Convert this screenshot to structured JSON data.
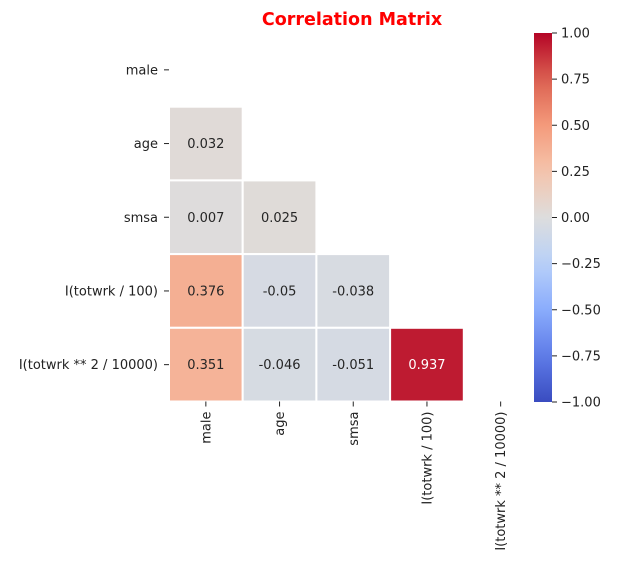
{
  "chart_data": {
    "type": "heatmap",
    "title": "Correlation Matrix",
    "title_color": "#ff0000",
    "variables": [
      "male",
      "age",
      "smsa",
      "I(totwrk / 100)",
      "I(totwrk ** 2 / 10000)"
    ],
    "mask": "upper-triangle-and-diagonal",
    "cells": [
      {
        "row": 1,
        "col": 0,
        "value": 0.032,
        "label": "0.032"
      },
      {
        "row": 2,
        "col": 0,
        "value": 0.007,
        "label": "0.007"
      },
      {
        "row": 2,
        "col": 1,
        "value": 0.025,
        "label": "0.025"
      },
      {
        "row": 3,
        "col": 0,
        "value": 0.376,
        "label": "0.376"
      },
      {
        "row": 3,
        "col": 1,
        "value": -0.05,
        "label": "-0.05"
      },
      {
        "row": 3,
        "col": 2,
        "value": -0.038,
        "label": "-0.038"
      },
      {
        "row": 4,
        "col": 0,
        "value": 0.351,
        "label": "0.351"
      },
      {
        "row": 4,
        "col": 1,
        "value": -0.046,
        "label": "-0.046"
      },
      {
        "row": 4,
        "col": 2,
        "value": -0.051,
        "label": "-0.051"
      },
      {
        "row": 4,
        "col": 3,
        "value": 0.937,
        "label": "0.937"
      }
    ],
    "colormap": "coolwarm",
    "vmin": -1.0,
    "vmax": 1.0,
    "colorbar_ticks": [
      {
        "value": 1.0,
        "label": "1.00"
      },
      {
        "value": 0.75,
        "label": "0.75"
      },
      {
        "value": 0.5,
        "label": "0.50"
      },
      {
        "value": 0.25,
        "label": "0.25"
      },
      {
        "value": 0.0,
        "label": "0.00"
      },
      {
        "value": -0.25,
        "label": "−0.25"
      },
      {
        "value": -0.5,
        "label": "−0.50"
      },
      {
        "value": -0.75,
        "label": "−0.75"
      },
      {
        "value": -1.0,
        "label": "−1.00"
      }
    ]
  }
}
